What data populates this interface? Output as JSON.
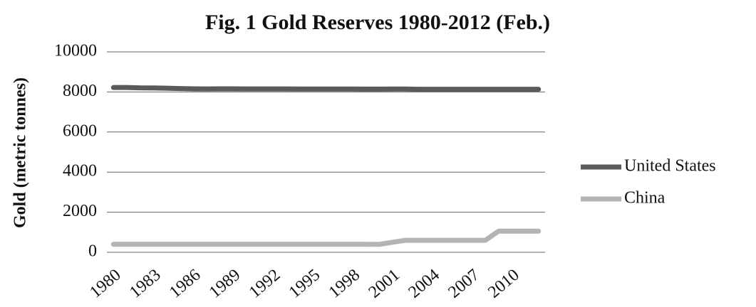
{
  "chart_data": {
    "type": "line",
    "title": "Fig. 1 Gold Reserves 1980-2012 (Feb.)",
    "y_label": "Gold (metric tonnes)",
    "categories": [
      "1980",
      null,
      null,
      "1983",
      null,
      null,
      "1986",
      null,
      null,
      "1989",
      null,
      null,
      "1992",
      null,
      null,
      "1995",
      null,
      null,
      "1998",
      null,
      null,
      "2001",
      null,
      null,
      "2004",
      null,
      null,
      "2007",
      null,
      null,
      "2010",
      null,
      null
    ],
    "series": [
      {
        "name": "United States",
        "color": "#5a5a5a",
        "values": [
          8221,
          8221,
          8203,
          8202,
          8185,
          8170,
          8158,
          8153,
          8155,
          8155,
          8152,
          8150,
          8150,
          8150,
          8149,
          8148,
          8147,
          8147,
          8145,
          8143,
          8141,
          8149,
          8149,
          8135,
          8135,
          8134,
          8134,
          8134,
          8134,
          8134,
          8134,
          8134,
          8134
        ]
      },
      {
        "name": "China",
        "color": "#b4b4b4",
        "values": [
          398,
          398,
          398,
          398,
          398,
          398,
          398,
          398,
          398,
          398,
          398,
          398,
          398,
          398,
          398,
          398,
          398,
          398,
          398,
          398,
          395,
          500,
          600,
          600,
          600,
          600,
          600,
          600,
          600,
          1054,
          1054,
          1054,
          1054
        ]
      }
    ],
    "ylim": [
      0,
      10000
    ],
    "yticks": [
      0,
      2000,
      4000,
      6000,
      8000,
      10000
    ],
    "grid": true,
    "legend": "right"
  }
}
